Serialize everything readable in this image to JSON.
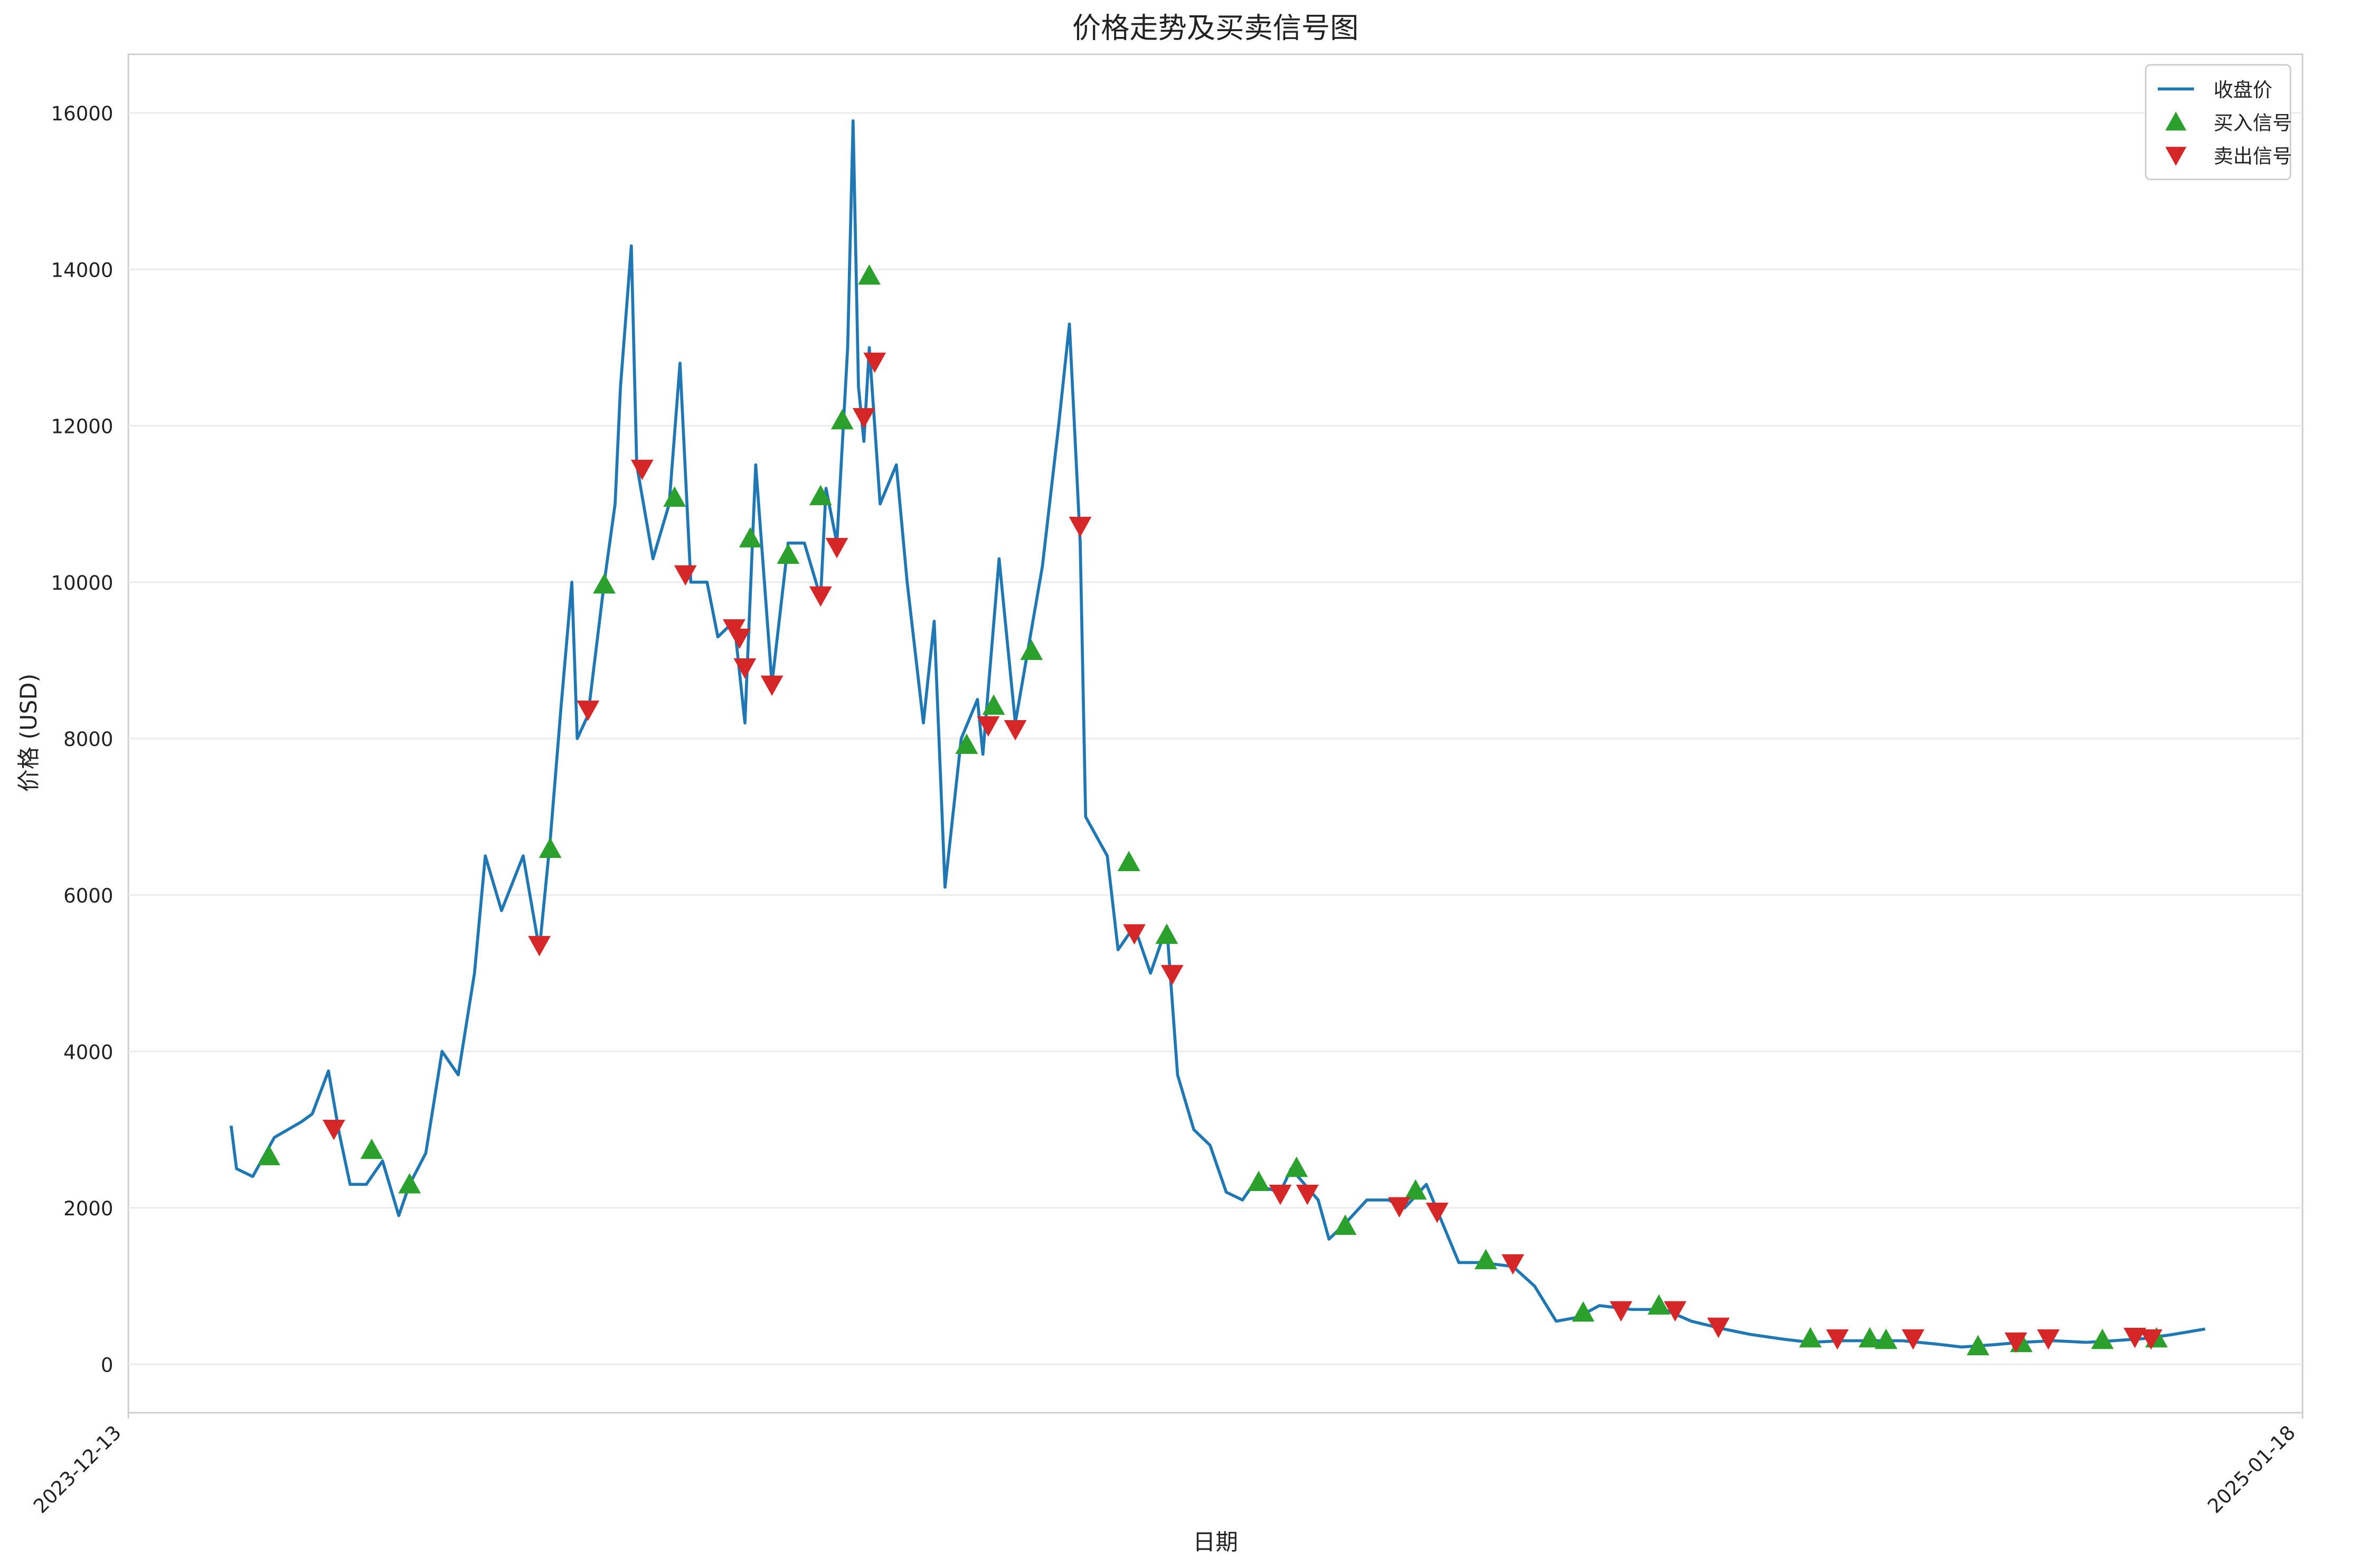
{
  "chart_data": {
    "type": "line",
    "title": "价格走势及买卖信号图",
    "x_label": "日期",
    "y_label": "价格 (USD)",
    "xlim": [
      "2023-12-13",
      "2025-01-18"
    ],
    "xticks": [
      "2023-12-13",
      "2025-01-18"
    ],
    "ylim": [
      -620,
      16750
    ],
    "yticks": [
      0,
      2000,
      4000,
      6000,
      8000,
      10000,
      12000,
      14000,
      16000
    ],
    "grid": true,
    "legend": "upper right",
    "series": [
      {
        "name": "收盘价",
        "type": "line",
        "color": "#1f77b4",
        "x": [
          "2024-01-01",
          "2024-01-02",
          "2024-01-05",
          "2024-01-09",
          "2024-01-14",
          "2024-01-16",
          "2024-01-19",
          "2024-01-21",
          "2024-01-23",
          "2024-01-26",
          "2024-01-29",
          "2024-02-01",
          "2024-02-03",
          "2024-02-06",
          "2024-02-09",
          "2024-02-12",
          "2024-02-15",
          "2024-02-17",
          "2024-02-20",
          "2024-02-24",
          "2024-02-27",
          "2024-02-29",
          "2024-03-02",
          "2024-03-04",
          "2024-03-05",
          "2024-03-07",
          "2024-03-10",
          "2024-03-12",
          "2024-03-13",
          "2024-03-15",
          "2024-03-16",
          "2024-03-19",
          "2024-03-22",
          "2024-03-24",
          "2024-03-26",
          "2024-03-29",
          "2024-03-31",
          "2024-04-03",
          "2024-04-05",
          "2024-04-07",
          "2024-04-10",
          "2024-04-13",
          "2024-04-16",
          "2024-04-19",
          "2024-04-20",
          "2024-04-22",
          "2024-04-24",
          "2024-04-25",
          "2024-04-26",
          "2024-04-27",
          "2024-04-28",
          "2024-04-30",
          "2024-05-03",
          "2024-05-05",
          "2024-05-08",
          "2024-05-10",
          "2024-05-12",
          "2024-05-15",
          "2024-05-18",
          "2024-05-19",
          "2024-05-22",
          "2024-05-25",
          "2024-05-30",
          "2024-06-02",
          "2024-06-04",
          "2024-06-06",
          "2024-06-07",
          "2024-06-11",
          "2024-06-13",
          "2024-06-16",
          "2024-06-19",
          "2024-06-22",
          "2024-06-24",
          "2024-06-27",
          "2024-06-30",
          "2024-07-03",
          "2024-07-06",
          "2024-07-08",
          "2024-07-13",
          "2024-07-15",
          "2024-07-20",
          "2024-07-22",
          "2024-07-25",
          "2024-07-29",
          "2024-08-02",
          "2024-08-05",
          "2024-08-09",
          "2024-08-12",
          "2024-08-15",
          "2024-08-19",
          "2024-08-25",
          "2024-08-29",
          "2024-09-02",
          "2024-09-06",
          "2024-09-10",
          "2024-09-16",
          "2024-09-22",
          "2024-09-27",
          "2024-10-03",
          "2024-10-08",
          "2024-10-14",
          "2024-10-19",
          "2024-10-25",
          "2024-10-31",
          "2024-11-05",
          "2024-11-11",
          "2024-11-16",
          "2024-11-22",
          "2024-11-27",
          "2024-12-03",
          "2024-12-09",
          "2024-12-14",
          "2024-12-20",
          "2024-12-25",
          "2024-12-31"
        ],
        "values": [
          3050,
          2500,
          2400,
          2900,
          3100,
          3200,
          3750,
          2950,
          2300,
          2300,
          2600,
          1900,
          2300,
          2700,
          4000,
          3700,
          5000,
          6500,
          5800,
          6500,
          5300,
          6700,
          8400,
          10000,
          8000,
          8300,
          10000,
          11000,
          12500,
          14300,
          11500,
          10300,
          11000,
          12800,
          10000,
          10000,
          9300,
          9500,
          8200,
          11500,
          8700,
          10500,
          10500,
          9800,
          11200,
          10500,
          13000,
          15900,
          12500,
          11800,
          13000,
          11000,
          11500,
          10000,
          8200,
          9500,
          6100,
          8000,
          8500,
          7800,
          10300,
          8200,
          10200,
          12000,
          13300,
          10500,
          7000,
          6500,
          5300,
          5600,
          5000,
          5600,
          3700,
          3000,
          2800,
          2200,
          2100,
          2300,
          2200,
          2500,
          2100,
          1600,
          1800,
          2100,
          2100,
          2000,
          2300,
          1800,
          1300,
          1300,
          1250,
          1000,
          550,
          600,
          750,
          700,
          700,
          550,
          450,
          380,
          320,
          280,
          300,
          300,
          300,
          260,
          220,
          250,
          280,
          300,
          280,
          300,
          330,
          380,
          450
        ]
      },
      {
        "name": "买入信号",
        "type": "scatter",
        "marker": "up",
        "color": "#2ca02c",
        "x": [
          "2024-01-08",
          "2024-01-27",
          "2024-02-03",
          "2024-02-29",
          "2024-03-10",
          "2024-03-23",
          "2024-04-06",
          "2024-04-13",
          "2024-04-19",
          "2024-04-23",
          "2024-04-28",
          "2024-05-16",
          "2024-05-21",
          "2024-05-28",
          "2024-06-15",
          "2024-06-22",
          "2024-07-09",
          "2024-07-16",
          "2024-07-25",
          "2024-08-07",
          "2024-08-20",
          "2024-09-07",
          "2024-09-21",
          "2024-10-19",
          "2024-10-30",
          "2024-11-02",
          "2024-11-19",
          "2024-11-27",
          "2024-12-12",
          "2024-12-22"
        ],
        "values": [
          2660,
          2740,
          2300,
          6590,
          9970,
          11080,
          10560,
          10350,
          11100,
          12070,
          13920,
          7920,
          8420,
          9120,
          6420,
          5490,
          2330,
          2510,
          1770,
          2220,
          1330,
          660,
          750,
          330,
          330,
          310,
          230,
          270,
          310,
          330
        ]
      },
      {
        "name": "卖出信号",
        "type": "scatter",
        "marker": "down",
        "color": "#d62728",
        "x": [
          "2024-01-20",
          "2024-02-27",
          "2024-03-07",
          "2024-03-17",
          "2024-03-25",
          "2024-04-03",
          "2024-04-04",
          "2024-04-05",
          "2024-04-10",
          "2024-04-19",
          "2024-04-22",
          "2024-04-27",
          "2024-04-29",
          "2024-05-20",
          "2024-05-25",
          "2024-06-06",
          "2024-06-16",
          "2024-06-23",
          "2024-07-13",
          "2024-07-18",
          "2024-08-04",
          "2024-08-11",
          "2024-08-25",
          "2024-09-14",
          "2024-09-24",
          "2024-10-02",
          "2024-10-24",
          "2024-11-07",
          "2024-11-26",
          "2024-12-02",
          "2024-12-18",
          "2024-12-21"
        ],
        "values": [
          3010,
          5360,
          8370,
          11450,
          10100,
          9410,
          9290,
          8910,
          8690,
          9830,
          10450,
          12110,
          12820,
          8170,
          8120,
          10720,
          5510,
          4990,
          2180,
          2180,
          2020,
          1950,
          1290,
          690,
          690,
          480,
          330,
          330,
          290,
          330,
          350,
          330
        ]
      }
    ]
  }
}
